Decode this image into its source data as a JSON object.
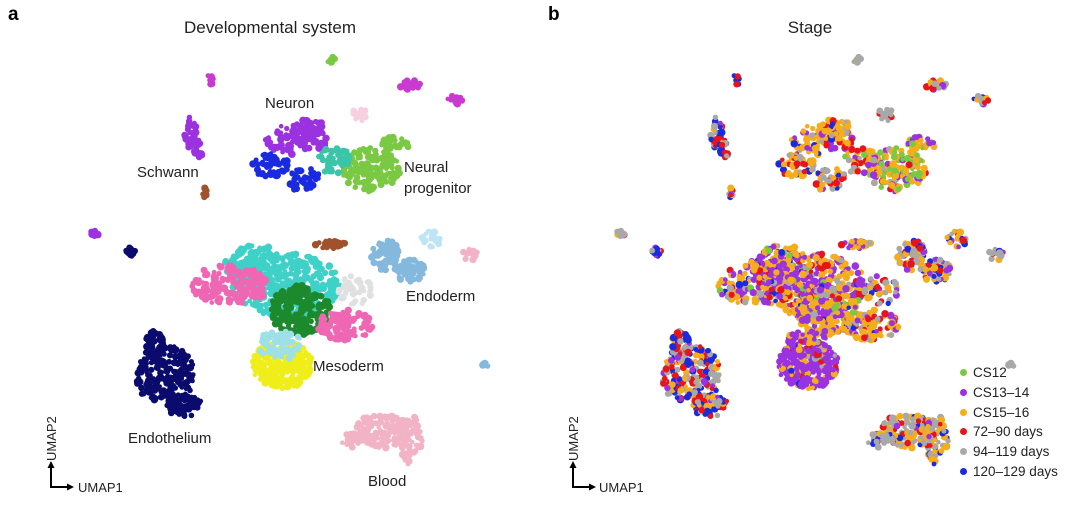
{
  "chart_data": [
    {
      "panel": "a",
      "type": "scatter",
      "title": "Developmental system",
      "xlabel": "UMAP1",
      "ylabel": "UMAP2",
      "grid": false,
      "cluster_labels": [
        "Neuron",
        "Schwann",
        "Neural progenitor",
        "Endoderm",
        "Mesoderm",
        "Endothelium",
        "Blood"
      ],
      "colors": {
        "neuron": "#9b32e0",
        "schwann": "#9b32e0",
        "neural_progenitor": "#7ac943",
        "neuron_blue": "#1a2adf",
        "endoderm": "#84b8dd",
        "mesoderm_cyan": "#3fd1c8",
        "mesoderm_green": "#1c8a2c",
        "mesoderm_yellow": "#f0ee1a",
        "mesoderm_pink": "#ef66b3",
        "endothelium": "#0b0b6e",
        "blood": "#f2b3c6",
        "brown": "#a0522d",
        "magenta": "#c83ad0"
      }
    },
    {
      "panel": "b",
      "type": "scatter",
      "title": "Stage",
      "xlabel": "UMAP1",
      "ylabel": "UMAP2",
      "grid": false,
      "legend_position": "bottom-right",
      "legend": [
        {
          "label": "CS12",
          "color": "#7ac943"
        },
        {
          "label": "CS13–14",
          "color": "#9b32e0"
        },
        {
          "label": "CS15–16",
          "color": "#f6ad1b"
        },
        {
          "label": "72–90 days",
          "color": "#e8141b"
        },
        {
          "label": "94–119 days",
          "color": "#a8a8a8"
        },
        {
          "label": "120–129 days",
          "color": "#1a2adf"
        }
      ]
    }
  ],
  "panels": {
    "a": {
      "letter": "a"
    },
    "b": {
      "letter": "b"
    }
  }
}
